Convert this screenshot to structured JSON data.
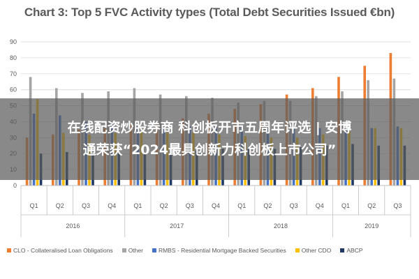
{
  "chart_data": {
    "type": "bar",
    "title": "Chart 3: Top 5 FVC Activity types (Total Debt Securities Issued €bn)",
    "ylim": [
      0,
      90
    ],
    "yticks": [
      0,
      10,
      20,
      30,
      40,
      50,
      60,
      70,
      80,
      90
    ],
    "grid": true,
    "legend_position": "bottom",
    "categories": [
      "Q1",
      "Q2",
      "Q3",
      "Q4",
      "Q1",
      "Q2",
      "Q3",
      "Q4",
      "Q1",
      "Q2",
      "Q3",
      "Q4",
      "Q1",
      "Q2",
      "Q3"
    ],
    "groups": [
      {
        "label": "2016",
        "start": 0,
        "end": 3
      },
      {
        "label": "2017",
        "start": 4,
        "end": 7
      },
      {
        "label": "2018",
        "start": 8,
        "end": 11
      },
      {
        "label": "2019",
        "start": 12,
        "end": 14
      }
    ],
    "series": [
      {
        "name": "CLO - Collateralised Loan Obligations",
        "color": "#ED7D31",
        "values": [
          30,
          32,
          35,
          36,
          38,
          40,
          42,
          45,
          48,
          51,
          57,
          61,
          68,
          75,
          83
        ]
      },
      {
        "name": "Other",
        "color": "#A5A5A5",
        "values": [
          68,
          61,
          58,
          59,
          61,
          57,
          56,
          55,
          52,
          53,
          53,
          56,
          59,
          66,
          67
        ]
      },
      {
        "name": "RMBS - Residential Mortgage Backed Securities",
        "color": "#4472C4",
        "values": [
          45,
          44,
          40,
          39,
          38,
          37,
          37,
          37,
          37,
          36,
          36,
          36,
          36,
          36,
          37
        ]
      },
      {
        "name": "Other CDO",
        "color": "#FFC000",
        "values": [
          54,
          33,
          32,
          33,
          34,
          33,
          33,
          32,
          31,
          30,
          30,
          32,
          34,
          36,
          36
        ]
      },
      {
        "name": "ABCP",
        "color": "#1F3864",
        "values": [
          20,
          21,
          22,
          20,
          21,
          22,
          22,
          23,
          23,
          23,
          24,
          25,
          26,
          25,
          25
        ]
      }
    ]
  },
  "overlay": {
    "line1": "在线配资炒股券商 科创板开市五周年评选 | 安博",
    "line2": "通荣获“2024最具创新力科创板上市公司”"
  }
}
